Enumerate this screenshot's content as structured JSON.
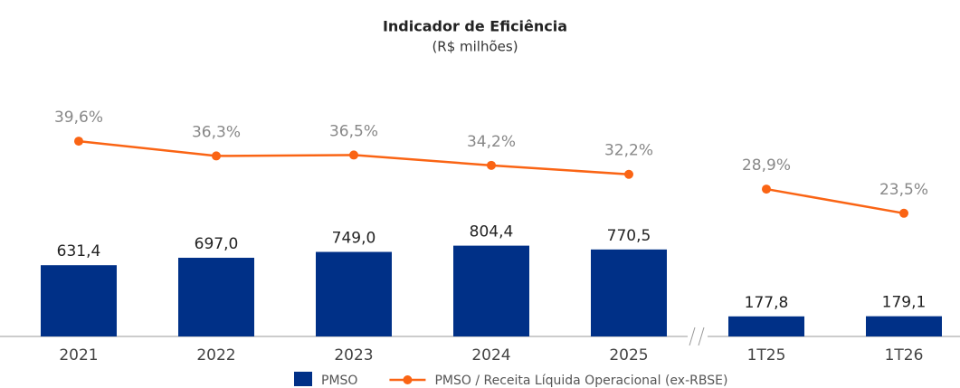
{
  "chart_data": {
    "type": "bar",
    "title": "Indicador de Eficiência",
    "subtitle": "(R$ milhões)",
    "categories": [
      "2021",
      "2022",
      "2023",
      "2024",
      "2025",
      "1T25",
      "1T26"
    ],
    "ylim": [
      0,
      2500
    ],
    "y2lim": [
      -4,
      59
    ],
    "series": [
      {
        "name": "PMSO",
        "type": "bar",
        "color": "#003087",
        "values": [
          631.4,
          697.0,
          749.0,
          804.4,
          770.5,
          177.8,
          179.1
        ],
        "value_labels": [
          "631,4",
          "697,0",
          "749,0",
          "804,4",
          "770,5",
          "177,8",
          "179,1"
        ]
      },
      {
        "name": "PMSO / Receita Líquida Operacional (ex-RBSE)",
        "type": "line",
        "axis": "y2",
        "color": "#fa6414",
        "values": [
          39.6,
          36.3,
          36.5,
          34.2,
          32.2,
          28.9,
          23.5
        ],
        "value_labels": [
          "39,6%",
          "36,3%",
          "36,5%",
          "34,2%",
          "32,2%",
          "28,9%",
          "23,5%"
        ]
      }
    ]
  }
}
